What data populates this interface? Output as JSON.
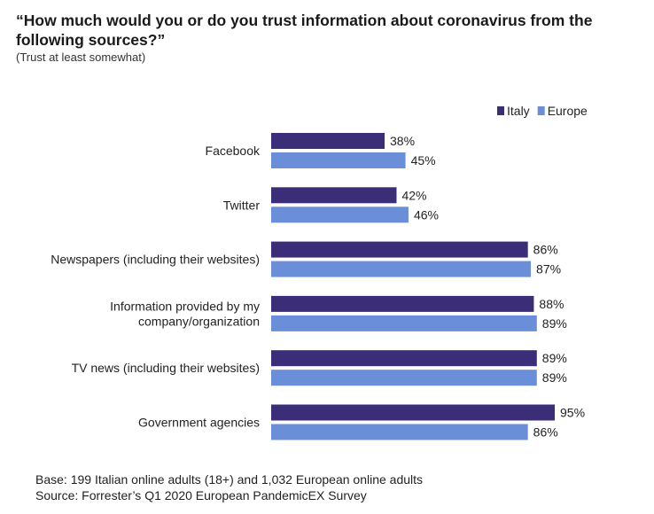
{
  "chart_data": {
    "type": "bar",
    "orientation": "horizontal",
    "title": "“How much would you or do you trust information about coronavirus from the following sources?”",
    "subtitle": "(Trust at least somewhat)",
    "categories": [
      [
        "Facebook"
      ],
      [
        "Twitter"
      ],
      [
        "Newspapers (including their websites)"
      ],
      [
        "Information provided by my",
        "company/organization"
      ],
      [
        "TV news (including their websites)"
      ],
      [
        "Government agencies"
      ]
    ],
    "series": [
      {
        "name": "Italy",
        "color": "#3b2d78",
        "values": [
          38,
          42,
          86,
          88,
          89,
          95
        ],
        "labels": [
          "38%",
          "42%",
          "86%",
          "88%",
          "89%",
          "95%"
        ]
      },
      {
        "name": "Europe",
        "color": "#6a8fd8",
        "values": [
          45,
          46,
          87,
          89,
          89,
          86
        ],
        "labels": [
          "45%",
          "46%",
          "87%",
          "89%",
          "89%",
          "86%"
        ]
      }
    ],
    "xlim": [
      0,
      100
    ],
    "legend": "top-right",
    "grid": false
  },
  "footer": {
    "base": "Base: 199 Italian online adults (18+) and 1,032 European online adults",
    "source": "Source: Forrester’s Q1 2020 European PandemicEX Survey"
  }
}
